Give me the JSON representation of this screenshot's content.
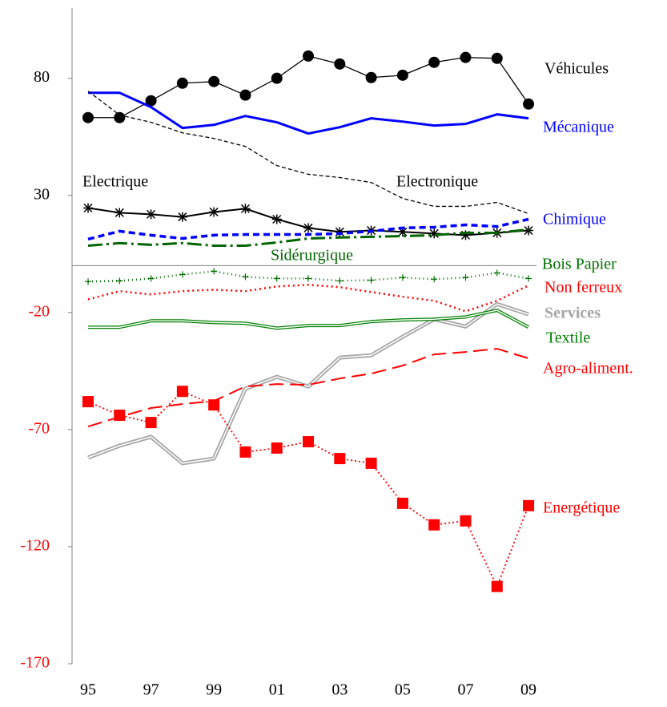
{
  "chart_data": {
    "type": "line",
    "categories": [
      "95",
      null,
      "97",
      null,
      "99",
      null,
      "01",
      null,
      "03",
      null,
      "05",
      null,
      "07",
      null,
      "09"
    ],
    "ylim": [
      -170,
      110
    ],
    "yticks": [
      80,
      30,
      -20,
      -70,
      -120,
      -170
    ],
    "series": [
      {
        "name": "Véhicules",
        "color": "#000000",
        "values": [
          63.2,
          63.2,
          70.4,
          77.9,
          78.6,
          72.8,
          80.0,
          89.5,
          86.1,
          80.3,
          81.3,
          86.8,
          88.9,
          88.5,
          69.0
        ]
      },
      {
        "name": "Mécanique",
        "color": "#0000ff",
        "values": [
          73.8,
          73.8,
          67.7,
          58.8,
          60.1,
          63.9,
          61.2,
          56.4,
          59.1,
          62.9,
          61.5,
          59.8,
          60.5,
          64.6,
          62.9
        ]
      },
      {
        "name": "Electronique",
        "color": "#000000",
        "values": [
          74.5,
          64.3,
          61.2,
          56.7,
          54.3,
          50.9,
          42.7,
          39.0,
          37.6,
          35.5,
          28.7,
          25.3,
          25.3,
          27.0,
          22.2
        ]
      },
      {
        "name": "Electrique",
        "color": "#000000",
        "values": [
          24.6,
          22.6,
          21.9,
          20.8,
          22.9,
          24.3,
          19.8,
          16.1,
          14.4,
          15.0,
          14.4,
          13.7,
          13.0,
          14.0,
          15.0
        ]
      },
      {
        "name": "Chimique",
        "color": "#0000ff",
        "values": [
          11.3,
          14.7,
          13.0,
          11.6,
          13.0,
          13.3,
          13.3,
          13.3,
          13.7,
          14.7,
          16.1,
          16.4,
          17.4,
          16.7,
          19.8
        ]
      },
      {
        "name": "Sidérurgique",
        "color": "#006400",
        "values": [
          8.5,
          9.6,
          8.9,
          9.6,
          8.5,
          8.5,
          9.9,
          11.6,
          12.0,
          12.3,
          12.6,
          13.0,
          14.0,
          14.0,
          15.4
        ]
      },
      {
        "name": "Bois Papier",
        "color": "#007000",
        "values": [
          -6.8,
          -6.5,
          -5.5,
          -3.8,
          -2.4,
          -4.8,
          -5.5,
          -5.5,
          -6.5,
          -6.2,
          -5.1,
          -5.8,
          -5.1,
          -3.1,
          -5.5
        ]
      },
      {
        "name": "Non ferreux",
        "color": "#ff0000",
        "values": [
          -14.4,
          -10.9,
          -12.3,
          -10.9,
          -10.3,
          -10.9,
          -8.9,
          -8.2,
          -9.2,
          -11.3,
          -13.3,
          -15.0,
          -19.5,
          -15.0,
          -8.5
        ]
      },
      {
        "name": "Services",
        "color": "#a6a6a6",
        "values": [
          -82.0,
          -76.9,
          -73.1,
          -84.4,
          -82.4,
          -52.6,
          -47.5,
          -51.6,
          -39.3,
          -38.3,
          -30.4,
          -22.9,
          -26.0,
          -16.4,
          -20.8
        ]
      },
      {
        "name": "Textile",
        "color": "#008000",
        "values": [
          -26.3,
          -26.3,
          -23.6,
          -23.6,
          -24.3,
          -24.6,
          -26.7,
          -25.6,
          -25.6,
          -23.9,
          -23.2,
          -22.9,
          -21.9,
          -19.1,
          -26.3
        ]
      },
      {
        "name": "Agro-aliment.",
        "color": "#ff0000",
        "values": [
          -68.7,
          -64.6,
          -60.8,
          -59.1,
          -57.8,
          -51.6,
          -50.6,
          -50.9,
          -48.2,
          -46.1,
          -42.7,
          -37.9,
          -36.9,
          -35.5,
          -39.6
        ]
      },
      {
        "name": "Energétique",
        "color": "#ff0000",
        "values": [
          -58.1,
          -63.9,
          -67.0,
          -53.7,
          -59.5,
          -79.6,
          -77.9,
          -75.2,
          -82.4,
          -84.4,
          -101.5,
          -110.7,
          -109.0,
          -137.0,
          -102.5
        ]
      }
    ]
  }
}
